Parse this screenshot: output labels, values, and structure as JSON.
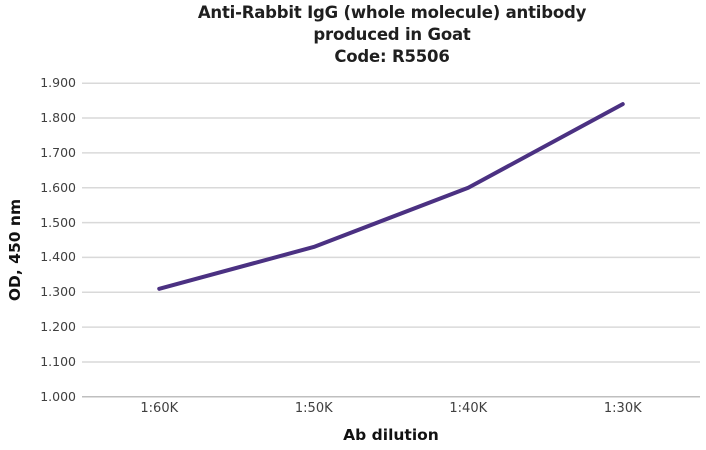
{
  "chart_data": {
    "type": "line",
    "title_lines": [
      "Anti-Rabbit IgG (whole molecule) antibody",
      "produced in Goat",
      "Code: R5506"
    ],
    "categories": [
      "1:60K",
      "1:50K",
      "1:40K",
      "1:30K"
    ],
    "series": [
      {
        "name": "OD 450 nm",
        "values": [
          1.31,
          1.43,
          1.6,
          1.84
        ]
      }
    ],
    "xlabel": "Ab dilution",
    "ylabel": "OD, 450 nm",
    "ylim": [
      1.0,
      1.9
    ],
    "ytick_step": 0.1,
    "ytick_labels": [
      "1.000",
      "1.100",
      "1.200",
      "1.300",
      "1.400",
      "1.500",
      "1.600",
      "1.700",
      "1.800",
      "1.900"
    ],
    "grid": "horizontal",
    "legend": "none",
    "colors": {
      "line": "#4b3182",
      "gridline": "#d9d9d9",
      "axis_line": "#bfbfbf",
      "tick_text": "#404040",
      "title_text": "#1f1f1f"
    }
  }
}
